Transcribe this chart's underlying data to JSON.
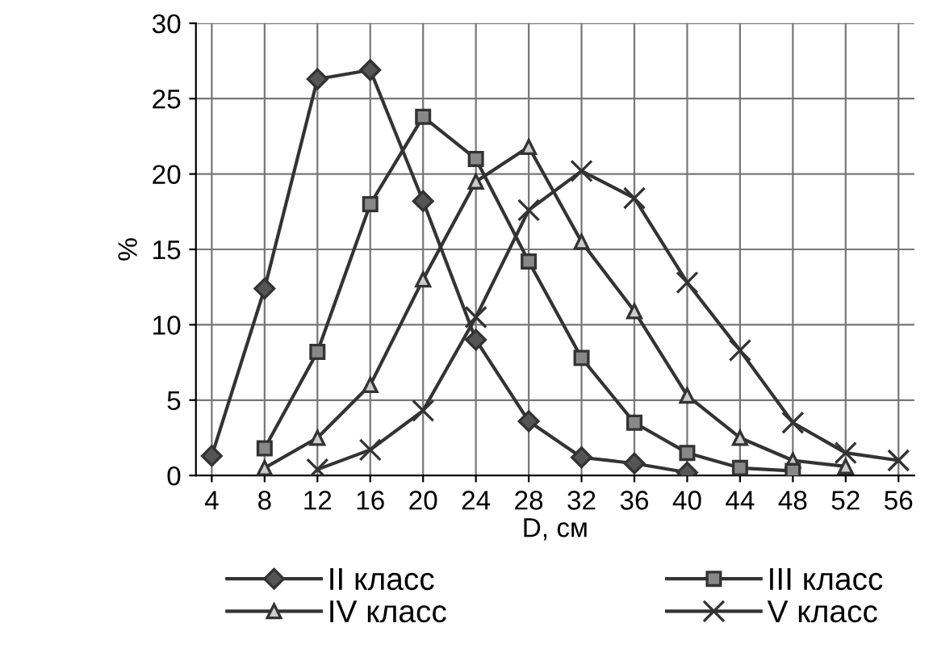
{
  "chart_data": {
    "type": "line",
    "xlabel": "D, см",
    "ylabel": "%",
    "categories": [
      "4",
      "8",
      "12",
      "16",
      "20",
      "24",
      "28",
      "32",
      "36",
      "40",
      "44",
      "48",
      "52",
      "56"
    ],
    "ylim": [
      0,
      30
    ],
    "yticks": [
      0,
      5,
      10,
      15,
      20,
      25,
      30
    ],
    "grid": true,
    "legend": "bottom",
    "line_style": "solid",
    "series": [
      {
        "name": "II класс",
        "color": "#333333",
        "marker": "diamond",
        "values": [
          1.3,
          12.4,
          26.3,
          26.9,
          18.2,
          9,
          3.6,
          1.2,
          0.8,
          0.2,
          null,
          null,
          null,
          null
        ]
      },
      {
        "name": "III класс",
        "color": "#333333",
        "marker": "square",
        "values": [
          null,
          1.8,
          8.2,
          18,
          23.8,
          21,
          14.2,
          7.8,
          3.5,
          1.5,
          0.5,
          0.3,
          null,
          null
        ]
      },
      {
        "name": "IV класс",
        "color": "#333333",
        "marker": "triangle",
        "values": [
          null,
          0.5,
          2.5,
          6,
          13,
          19.5,
          21.8,
          15.5,
          10.9,
          5.3,
          2.5,
          1,
          0.6,
          null
        ]
      },
      {
        "name": "V класс",
        "color": "#333333",
        "marker": "cross",
        "values": [
          null,
          null,
          0.4,
          1.7,
          4.3,
          10.5,
          17.6,
          20.2,
          18.4,
          12.8,
          8.3,
          3.5,
          1.5,
          1
        ]
      }
    ]
  }
}
